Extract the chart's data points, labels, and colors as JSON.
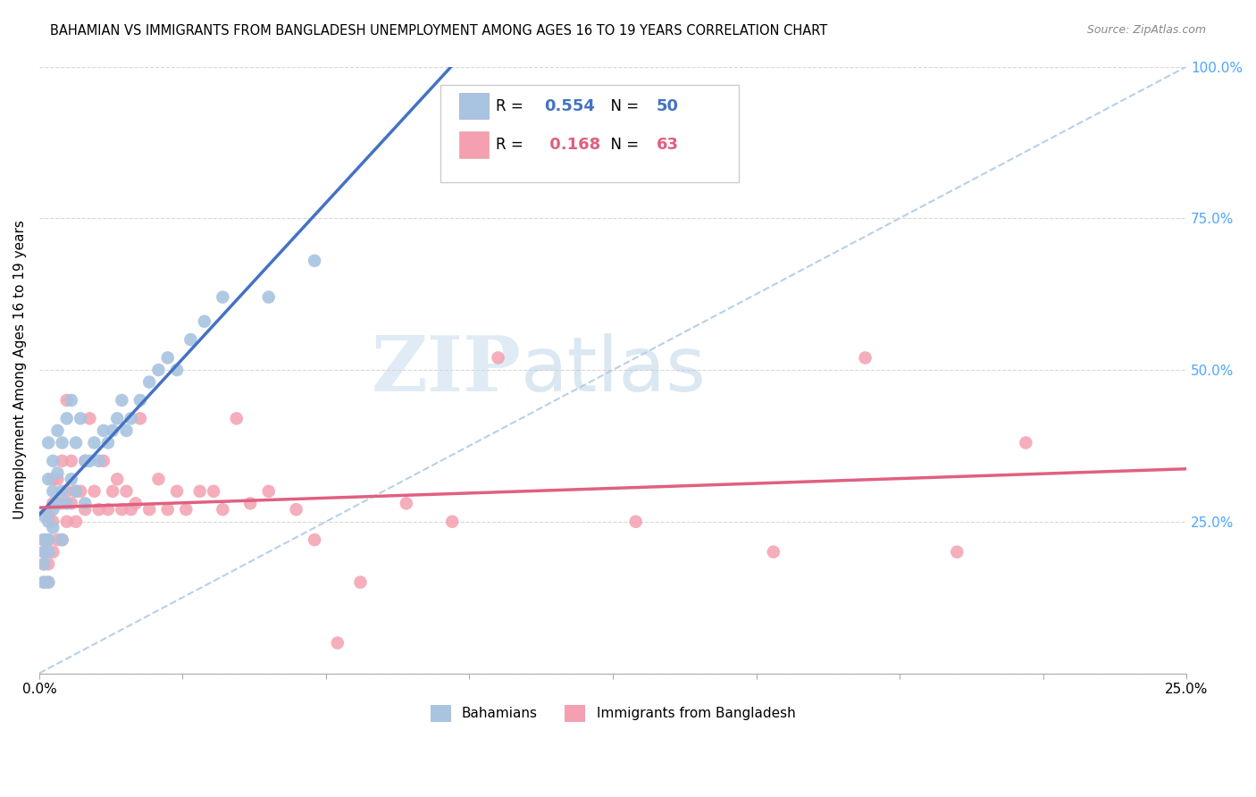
{
  "title": "BAHAMIAN VS IMMIGRANTS FROM BANGLADESH UNEMPLOYMENT AMONG AGES 16 TO 19 YEARS CORRELATION CHART",
  "source": "Source: ZipAtlas.com",
  "ylabel": "Unemployment Among Ages 16 to 19 years",
  "legend_labels": [
    "Bahamians",
    "Immigrants from Bangladesh"
  ],
  "r_bahamian": "0.554",
  "n_bahamian": "50",
  "r_bangladesh": "0.168",
  "n_bangladesh": "63",
  "xlim": [
    0.0,
    0.25
  ],
  "ylim": [
    0.0,
    1.0
  ],
  "yticks": [
    0.0,
    0.25,
    0.5,
    0.75,
    1.0
  ],
  "ytick_labels": [
    "",
    "25.0%",
    "50.0%",
    "75.0%",
    "100.0%"
  ],
  "xticks": [
    0.0,
    0.03125,
    0.0625,
    0.09375,
    0.125,
    0.15625,
    0.1875,
    0.21875,
    0.25
  ],
  "xtick_labels": [
    "0.0%",
    "",
    "",
    "",
    "",
    "",
    "",
    "",
    "25.0%"
  ],
  "color_bahamian": "#a8c4e0",
  "color_bangladesh": "#f4a0b0",
  "color_line_bahamian": "#4472c4",
  "color_line_bangladesh": "#e06080",
  "color_right_axis": "#4da6ff",
  "watermark_zip": "ZIP",
  "watermark_atlas": "atlas",
  "bahamian_x": [
    0.001,
    0.001,
    0.001,
    0.001,
    0.001,
    0.002,
    0.002,
    0.002,
    0.002,
    0.002,
    0.002,
    0.003,
    0.003,
    0.003,
    0.003,
    0.004,
    0.004,
    0.004,
    0.005,
    0.005,
    0.005,
    0.006,
    0.006,
    0.007,
    0.007,
    0.008,
    0.008,
    0.009,
    0.01,
    0.01,
    0.011,
    0.012,
    0.013,
    0.014,
    0.015,
    0.016,
    0.017,
    0.018,
    0.019,
    0.02,
    0.022,
    0.024,
    0.026,
    0.028,
    0.03,
    0.033,
    0.036,
    0.04,
    0.05,
    0.06
  ],
  "bahamian_y": [
    0.18,
    0.2,
    0.22,
    0.15,
    0.26,
    0.15,
    0.2,
    0.22,
    0.25,
    0.32,
    0.38,
    0.24,
    0.27,
    0.3,
    0.35,
    0.28,
    0.33,
    0.4,
    0.22,
    0.3,
    0.38,
    0.28,
    0.42,
    0.32,
    0.45,
    0.3,
    0.38,
    0.42,
    0.28,
    0.35,
    0.35,
    0.38,
    0.35,
    0.4,
    0.38,
    0.4,
    0.42,
    0.45,
    0.4,
    0.42,
    0.45,
    0.48,
    0.5,
    0.52,
    0.5,
    0.55,
    0.58,
    0.62,
    0.62,
    0.68
  ],
  "bangladesh_x": [
    0.001,
    0.001,
    0.001,
    0.001,
    0.002,
    0.002,
    0.002,
    0.002,
    0.003,
    0.003,
    0.003,
    0.003,
    0.004,
    0.004,
    0.004,
    0.005,
    0.005,
    0.005,
    0.006,
    0.006,
    0.006,
    0.007,
    0.007,
    0.008,
    0.008,
    0.009,
    0.01,
    0.01,
    0.011,
    0.012,
    0.013,
    0.014,
    0.015,
    0.016,
    0.017,
    0.018,
    0.019,
    0.02,
    0.021,
    0.022,
    0.024,
    0.026,
    0.028,
    0.03,
    0.032,
    0.035,
    0.038,
    0.04,
    0.043,
    0.046,
    0.05,
    0.056,
    0.06,
    0.065,
    0.07,
    0.08,
    0.09,
    0.1,
    0.13,
    0.16,
    0.18,
    0.2,
    0.215
  ],
  "bangladesh_y": [
    0.15,
    0.18,
    0.2,
    0.22,
    0.15,
    0.18,
    0.22,
    0.26,
    0.2,
    0.25,
    0.28,
    0.32,
    0.22,
    0.28,
    0.32,
    0.22,
    0.28,
    0.35,
    0.25,
    0.3,
    0.45,
    0.28,
    0.35,
    0.25,
    0.3,
    0.3,
    0.27,
    0.35,
    0.42,
    0.3,
    0.27,
    0.35,
    0.27,
    0.3,
    0.32,
    0.27,
    0.3,
    0.27,
    0.28,
    0.42,
    0.27,
    0.32,
    0.27,
    0.3,
    0.27,
    0.3,
    0.3,
    0.27,
    0.42,
    0.28,
    0.3,
    0.27,
    0.22,
    0.05,
    0.15,
    0.28,
    0.25,
    0.52,
    0.25,
    0.2,
    0.52,
    0.2,
    0.38
  ]
}
